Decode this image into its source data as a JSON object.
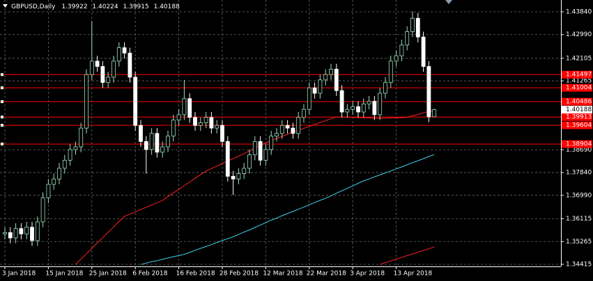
{
  "chart_data": {
    "type": "candlestick",
    "title": "GBPUSD,Daily",
    "categories": [
      "3 Jan 2018",
      null,
      null,
      null,
      null,
      null,
      null,
      null,
      "15 Jan 2018",
      null,
      null,
      null,
      null,
      null,
      null,
      null,
      "25 Jan 2018",
      null,
      null,
      null,
      null,
      null,
      null,
      null,
      "6 Feb 2018",
      null,
      null,
      null,
      null,
      null,
      null,
      null,
      "16 Feb 2018",
      null,
      null,
      null,
      null,
      null,
      null,
      null,
      "28 Feb 2018",
      null,
      null,
      null,
      null,
      null,
      null,
      null,
      "12 Mar 2018",
      null,
      null,
      null,
      null,
      null,
      null,
      null,
      "22 Mar 2018",
      null,
      null,
      null,
      null,
      null,
      null,
      null,
      "3 Apr 2018",
      null,
      null,
      null,
      null,
      null,
      null,
      null,
      "13 Apr 2018",
      null,
      null,
      null,
      null,
      null,
      null,
      null
    ],
    "open": [
      1.3555,
      1.356,
      1.354,
      1.3575,
      1.3555,
      1.358,
      1.353,
      1.36,
      1.369,
      1.374,
      1.376,
      1.38,
      1.383,
      1.387,
      1.388,
      1.395,
      1.415,
      1.42,
      1.418,
      1.412,
      1.414,
      1.42,
      1.425,
      1.423,
      1.414,
      1.396,
      1.39,
      1.387,
      1.393,
      1.386,
      1.388,
      1.392,
      1.398,
      1.4,
      1.406,
      1.399,
      1.396,
      1.397,
      1.399,
      1.395,
      1.396,
      1.39,
      1.377,
      1.376,
      1.378,
      1.38,
      1.385,
      1.39,
      1.383,
      1.387,
      1.392,
      1.393,
      1.396,
      1.395,
      1.393,
      1.399,
      1.402,
      1.41,
      1.408,
      1.413,
      1.415,
      1.417,
      1.409,
      1.401,
      1.402,
      1.403,
      1.401,
      1.404,
      1.405,
      1.4,
      1.408,
      1.412,
      1.42,
      1.422,
      1.426,
      1.431,
      1.436,
      1.429,
      1.418,
      1.39922
    ],
    "high": [
      1.358,
      1.358,
      1.3595,
      1.3595,
      1.36,
      1.36,
      1.362,
      1.371,
      1.376,
      1.378,
      1.382,
      1.385,
      1.389,
      1.39,
      1.397,
      1.417,
      1.435,
      1.422,
      1.42,
      1.416,
      1.422,
      1.427,
      1.427,
      1.425,
      1.416,
      1.398,
      1.392,
      1.395,
      1.395,
      1.39,
      1.394,
      1.4,
      1.402,
      1.413,
      1.408,
      1.401,
      1.399,
      1.401,
      1.401,
      1.398,
      1.398,
      1.392,
      1.379,
      1.38,
      1.382,
      1.387,
      1.392,
      1.392,
      1.389,
      1.394,
      1.395,
      1.398,
      1.398,
      1.397,
      1.401,
      1.404,
      1.412,
      1.412,
      1.415,
      1.417,
      1.419,
      1.419,
      1.411,
      1.404,
      1.405,
      1.405,
      1.406,
      1.407,
      1.407,
      1.41,
      1.414,
      1.422,
      1.424,
      1.428,
      1.433,
      1.4385,
      1.438,
      1.431,
      1.42,
      1.40224
    ],
    "low": [
      1.3535,
      1.352,
      1.352,
      1.3535,
      1.3535,
      1.351,
      1.351,
      1.358,
      1.367,
      1.372,
      1.374,
      1.378,
      1.381,
      1.385,
      1.386,
      1.393,
      1.413,
      1.416,
      1.41,
      1.41,
      1.412,
      1.418,
      1.421,
      1.412,
      1.394,
      1.388,
      1.378,
      1.385,
      1.384,
      1.384,
      1.386,
      1.39,
      1.396,
      1.398,
      1.397,
      1.394,
      1.394,
      1.395,
      1.393,
      1.393,
      1.388,
      1.375,
      1.37,
      1.374,
      1.376,
      1.378,
      1.383,
      1.381,
      1.381,
      1.385,
      1.39,
      1.391,
      1.393,
      1.391,
      1.391,
      1.397,
      1.4,
      1.406,
      1.406,
      1.411,
      1.413,
      1.407,
      1.399,
      1.399,
      1.4,
      1.399,
      1.399,
      1.402,
      1.398,
      1.398,
      1.406,
      1.41,
      1.418,
      1.42,
      1.424,
      1.429,
      1.427,
      1.416,
      1.3972,
      1.39915
    ],
    "close": [
      1.356,
      1.354,
      1.3575,
      1.3555,
      1.358,
      1.353,
      1.36,
      1.369,
      1.374,
      1.376,
      1.38,
      1.383,
      1.387,
      1.388,
      1.395,
      1.415,
      1.42,
      1.418,
      1.412,
      1.414,
      1.42,
      1.425,
      1.423,
      1.414,
      1.396,
      1.39,
      1.387,
      1.393,
      1.386,
      1.388,
      1.392,
      1.398,
      1.4,
      1.406,
      1.399,
      1.396,
      1.397,
      1.399,
      1.395,
      1.396,
      1.39,
      1.377,
      1.376,
      1.378,
      1.38,
      1.385,
      1.39,
      1.383,
      1.387,
      1.392,
      1.393,
      1.396,
      1.395,
      1.393,
      1.399,
      1.402,
      1.41,
      1.408,
      1.413,
      1.415,
      1.417,
      1.409,
      1.401,
      1.402,
      1.403,
      1.401,
      1.404,
      1.405,
      1.4,
      1.408,
      1.412,
      1.42,
      1.422,
      1.426,
      1.431,
      1.436,
      1.429,
      1.418,
      1.3992,
      1.40188
    ],
    "up_color": "#000000",
    "down_color": "#ffffff",
    "outline_color": "#9fe0c0",
    "series": [
      {
        "color": "#ff2020",
        "values": [
          null,
          null,
          null,
          null,
          null,
          null,
          null,
          null,
          null,
          null,
          null,
          null,
          null,
          1.3441,
          1.3461,
          1.3481,
          1.3501,
          1.3521,
          1.3541,
          1.3561,
          1.3581,
          1.3601,
          1.362,
          1.3629,
          1.3637,
          1.3646,
          1.3654,
          1.3663,
          1.3671,
          1.368,
          1.3694,
          1.3708,
          1.3721,
          1.3735,
          1.3749,
          1.3763,
          1.3776,
          1.379,
          1.3799,
          1.3808,
          1.3818,
          1.3827,
          1.3836,
          1.3845,
          1.3855,
          1.3865,
          1.3875,
          1.3885,
          1.3895,
          1.3903,
          1.3911,
          1.3919,
          1.3927,
          1.3935,
          1.3942,
          1.3949,
          1.3956,
          1.3964,
          1.3971,
          1.3978,
          1.3985,
          1.3992,
          1.3991,
          1.399,
          1.399,
          1.3989,
          1.3988,
          1.3988,
          1.3987,
          1.3986,
          1.3987,
          1.3988,
          1.3988,
          1.3989,
          1.399,
          1.3996,
          1.4001,
          1.4007,
          1.4012,
          1.4016
        ]
      },
      {
        "color": "#40d0f0",
        "values": [
          null,
          null,
          null,
          null,
          null,
          null,
          null,
          null,
          null,
          null,
          null,
          null,
          null,
          null,
          null,
          null,
          null,
          null,
          null,
          null,
          null,
          null,
          null,
          null,
          null,
          1.3441,
          1.3446,
          1.3451,
          1.3455,
          1.346,
          1.3465,
          1.347,
          1.3474,
          1.3479,
          1.3486,
          1.3494,
          1.3501,
          1.3508,
          1.3515,
          1.3523,
          1.353,
          1.3537,
          1.3544,
          1.3553,
          1.3562,
          1.357,
          1.3579,
          1.3588,
          1.3597,
          1.3606,
          1.3614,
          1.3623,
          1.3631,
          1.3639,
          1.3647,
          1.3655,
          1.3664,
          1.3672,
          1.368,
          1.3688,
          1.3697,
          1.3707,
          1.3716,
          1.3725,
          1.3734,
          1.3744,
          1.3753,
          1.376,
          1.3768,
          1.3775,
          1.3783,
          1.379,
          1.3798,
          1.3805,
          1.3813,
          1.3821,
          1.3828,
          1.3836,
          1.3844,
          1.3851
        ]
      },
      {
        "color": "#ff2020",
        "values": [
          null,
          null,
          null,
          null,
          null,
          null,
          null,
          null,
          null,
          null,
          null,
          null,
          null,
          null,
          null,
          null,
          null,
          null,
          null,
          null,
          null,
          null,
          null,
          null,
          null,
          null,
          null,
          null,
          null,
          null,
          null,
          null,
          null,
          null,
          null,
          null,
          null,
          null,
          null,
          null,
          null,
          null,
          null,
          null,
          null,
          null,
          null,
          null,
          null,
          null,
          null,
          null,
          null,
          null,
          null,
          null,
          null,
          null,
          null,
          null,
          null,
          null,
          null,
          null,
          null,
          null,
          null,
          null,
          null,
          1.3441,
          1.3448,
          1.3454,
          1.3461,
          1.3467,
          1.3474,
          1.348,
          1.3487,
          1.3493,
          1.35,
          1.3506
        ]
      }
    ],
    "levels": [
      1.41497,
      1.41004,
      1.40486,
      1.39913,
      1.39604,
      1.38904
    ],
    "level_color": "#ff0000",
    "ylim": [
      1.34337,
      1.44281
    ],
    "yticks": [
      {
        "value": 1.4384,
        "label": "1.43840"
      },
      {
        "value": 1.4299,
        "label": "1.42990"
      },
      1.42105,
      1.41265,
      {
        "value": 1.3869,
        "label": "1.38690"
      },
      {
        "value": 1.3784,
        "label": "1.37840"
      },
      {
        "value": 1.3699,
        "label": "1.36990"
      },
      1.36115,
      1.35265,
      1.34415
    ],
    "grid": true
  }
}
